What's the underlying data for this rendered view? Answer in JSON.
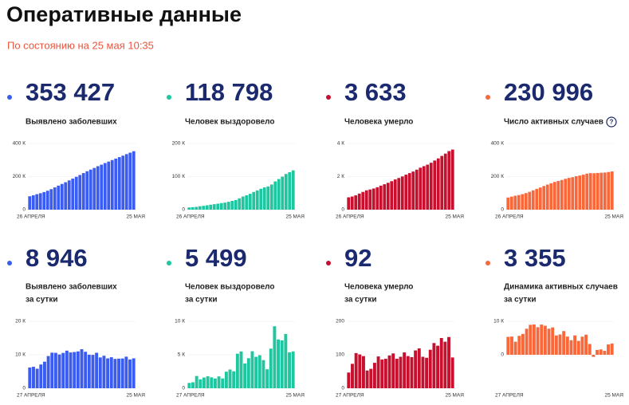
{
  "header": {
    "title": "Оперативные данные",
    "subtitle": "По состоянию на 25 мая 10:35"
  },
  "chart_data": [
    {
      "type": "bar",
      "headline": "353 427",
      "title": "Выявлено заболевших",
      "color": "#3b5cf0",
      "categories": [
        "26 АПРЕЛЯ",
        null,
        null,
        null,
        null,
        null,
        null,
        null,
        null,
        null,
        null,
        null,
        null,
        null,
        null,
        null,
        null,
        null,
        null,
        null,
        null,
        null,
        null,
        null,
        null,
        null,
        null,
        null,
        null,
        "25 МАЯ"
      ],
      "values": [
        80949,
        87147,
        93558,
        99399,
        106498,
        114431,
        124054,
        134687,
        145268,
        155370,
        165929,
        177160,
        187859,
        198676,
        209688,
        221344,
        232243,
        242271,
        252245,
        262843,
        272043,
        281752,
        290678,
        299941,
        308705,
        317554,
        326448,
        335882,
        344481,
        353427
      ],
      "ylim": [
        0,
        400000
      ],
      "yticks": [
        0,
        {
          "value": 200000,
          "label": "200 К"
        },
        {
          "value": 400000,
          "label": "400 К"
        }
      ]
    },
    {
      "type": "bar",
      "headline": "118 798",
      "title": "Человек выздоровело",
      "color": "#1fc7a0",
      "categories": [
        "26 АПРЕЛЯ",
        null,
        null,
        null,
        null,
        null,
        null,
        null,
        null,
        null,
        null,
        null,
        null,
        null,
        null,
        null,
        null,
        null,
        null,
        null,
        null,
        null,
        null,
        null,
        null,
        null,
        null,
        null,
        null,
        "25 МАЯ"
      ],
      "values": [
        6767,
        7564,
        8456,
        10286,
        11619,
        13220,
        15013,
        16639,
        18095,
        19865,
        21327,
        23803,
        26608,
        29145,
        34306,
        39801,
        43512,
        48003,
        53530,
        58226,
        63166,
        67373,
        70209,
        76130,
        85392,
        92681,
        99825,
        107936,
        113299,
        118798
      ],
      "ylim": [
        0,
        200000
      ],
      "yticks": [
        0,
        {
          "value": 100000,
          "label": "100 К"
        },
        {
          "value": 200000,
          "label": "200 К"
        }
      ]
    },
    {
      "type": "bar",
      "headline": "3 633",
      "title": "Человека умерло",
      "color": "#c8102e",
      "categories": [
        "26 АПРЕЛЯ",
        null,
        null,
        null,
        null,
        null,
        null,
        null,
        null,
        null,
        null,
        null,
        null,
        null,
        null,
        null,
        null,
        null,
        null,
        null,
        null,
        null,
        null,
        null,
        null,
        null,
        null,
        null,
        null,
        "25 МАЯ"
      ],
      "values": [
        747,
        794,
        867,
        972,
        1073,
        1169,
        1222,
        1280,
        1356,
        1451,
        1537,
        1625,
        1723,
        1827,
        1915,
        2009,
        2116,
        2212,
        2305,
        2418,
        2537,
        2631,
        2722,
        2837,
        2972,
        3099,
        3249,
        3388,
        3541,
        3633
      ],
      "ylim": [
        0,
        4000
      ],
      "yticks": [
        0,
        {
          "value": 2000,
          "label": "2 К"
        },
        {
          "value": 4000,
          "label": "4 К"
        }
      ]
    },
    {
      "type": "bar",
      "headline": "230 996",
      "title": "Число активных случаев",
      "color": "#f8683b",
      "categories": [
        "26 АПРЕЛЯ",
        null,
        null,
        null,
        null,
        null,
        null,
        null,
        null,
        null,
        null,
        null,
        null,
        null,
        null,
        null,
        null,
        null,
        null,
        null,
        null,
        null,
        null,
        null,
        null,
        null,
        null,
        null,
        null,
        "25 МАЯ"
      ],
      "values": [
        73435,
        78789,
        84235,
        88141,
        93806,
        100042,
        107819,
        116768,
        125817,
        134054,
        143065,
        151732,
        159528,
        167704,
        173467,
        179534,
        186615,
        192056,
        196410,
        202199,
        206340,
        211748,
        217747,
        220974,
        220341,
        221774,
        223374,
        224558,
        227641,
        230996
      ],
      "ylim": [
        0,
        400000
      ],
      "yticks": [
        0,
        {
          "value": 200000,
          "label": "200 К"
        },
        {
          "value": 400000,
          "label": "400 К"
        }
      ]
    },
    {
      "type": "bar",
      "headline": "8 946",
      "title": "Выявлено заболевших",
      "subtitle": "за сутки",
      "color": "#3b5cf0",
      "categories": [
        "27 АПРЕЛЯ",
        null,
        null,
        null,
        null,
        null,
        null,
        null,
        null,
        null,
        null,
        null,
        null,
        null,
        null,
        null,
        null,
        null,
        null,
        null,
        null,
        null,
        null,
        null,
        null,
        null,
        null,
        null,
        "25 МАЯ"
      ],
      "values": [
        6198,
        6411,
        5841,
        7099,
        7933,
        9623,
        10633,
        10581,
        10102,
        10559,
        11231,
        10699,
        10817,
        11012,
        11656,
        10899,
        10028,
        9974,
        10598,
        9200,
        9709,
        8926,
        9263,
        8764,
        8849,
        8894,
        9434,
        8599,
        8946
      ],
      "ylim": [
        0,
        20000
      ],
      "yticks": [
        0,
        {
          "value": 10000,
          "label": "10 К"
        },
        {
          "value": 20000,
          "label": "20 К"
        }
      ]
    },
    {
      "type": "bar",
      "headline": "5 499",
      "title": "Человек выздоровело",
      "subtitle": "за сутки",
      "color": "#1fc7a0",
      "categories": [
        "27 АПРЕЛЯ",
        null,
        null,
        null,
        null,
        null,
        null,
        null,
        null,
        null,
        null,
        null,
        null,
        null,
        null,
        null,
        null,
        null,
        null,
        null,
        null,
        null,
        null,
        null,
        null,
        null,
        null,
        null,
        "25 МАЯ"
      ],
      "values": [
        797,
        892,
        1830,
        1333,
        1601,
        1793,
        1626,
        1456,
        1770,
        1462,
        2476,
        2805,
        2537,
        5161,
        5495,
        3711,
        4491,
        5527,
        4696,
        4940,
        4207,
        2836,
        5921,
        9262,
        7289,
        7144,
        8111,
        5363,
        5499
      ],
      "ylim": [
        0,
        10000
      ],
      "yticks": [
        0,
        {
          "value": 5000,
          "label": "5 К"
        },
        {
          "value": 10000,
          "label": "10 К"
        }
      ]
    },
    {
      "type": "bar",
      "headline": "92",
      "title": "Человека умерло",
      "subtitle": "за сутки",
      "color": "#c8102e",
      "categories": [
        "27 АПРЕЛЯ",
        null,
        null,
        null,
        null,
        null,
        null,
        null,
        null,
        null,
        null,
        null,
        null,
        null,
        null,
        null,
        null,
        null,
        null,
        null,
        null,
        null,
        null,
        null,
        null,
        null,
        null,
        null,
        "25 МАЯ"
      ],
      "values": [
        47,
        73,
        105,
        101,
        96,
        53,
        58,
        76,
        95,
        86,
        88,
        98,
        104,
        88,
        94,
        107,
        96,
        93,
        113,
        119,
        94,
        91,
        115,
        135,
        127,
        150,
        139,
        153,
        92
      ],
      "ylim": [
        0,
        200
      ],
      "yticks": [
        0,
        100,
        200
      ]
    },
    {
      "type": "bar",
      "headline": "3 355",
      "title": "Динамика активных случаев",
      "subtitle": "за сутки",
      "color": "#f8683b",
      "categories": [
        "27 АПРЕЛЯ",
        null,
        null,
        null,
        null,
        null,
        null,
        null,
        null,
        null,
        null,
        null,
        null,
        null,
        null,
        null,
        null,
        null,
        null,
        null,
        null,
        null,
        null,
        null,
        null,
        null,
        null,
        null,
        "25 МАЯ"
      ],
      "values": [
        5354,
        5446,
        3906,
        5665,
        6236,
        7777,
        8949,
        9049,
        8237,
        9011,
        8667,
        7796,
        8176,
        5763,
        6067,
        7081,
        5441,
        4354,
        5789,
        4141,
        5408,
        5999,
        3227,
        -633,
        1433,
        1600,
        1184,
        3083,
        3355
      ],
      "ylim": [
        -10000,
        10000
      ],
      "yticks": [
        0,
        {
          "value": 10000,
          "label": "10 К"
        }
      ]
    }
  ]
}
